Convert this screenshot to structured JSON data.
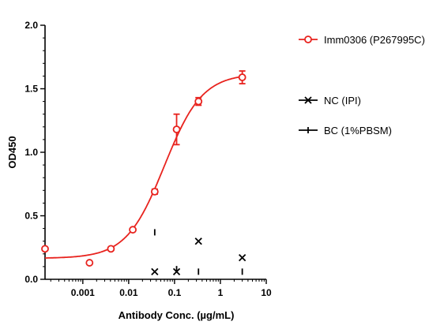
{
  "chart_data": {
    "type": "scatter",
    "title": "",
    "xlabel": "Antibody Conc. (µg/mL)",
    "ylabel": "OD450",
    "x_scale": "log",
    "xlim": [
      0.00015,
      10
    ],
    "ylim": [
      0,
      2.0
    ],
    "x_ticks": [
      0.001,
      0.01,
      0.1,
      1,
      10
    ],
    "x_tick_labels": [
      "0.001",
      "0.01",
      "0.1",
      "1",
      "10"
    ],
    "y_ticks": [
      0,
      0.5,
      1.0,
      1.5,
      2.0
    ],
    "y_tick_labels": [
      "0.0",
      "0.5",
      "1.0",
      "1.5",
      "2.0"
    ],
    "grid": false,
    "legend_position": "right",
    "series": [
      {
        "name": "Imm0306 (P267995C)",
        "marker": "circle",
        "color": "#e8231e",
        "fit": "sigmoidal dose-response",
        "x": [
          0.00015,
          0.0014,
          0.0041,
          0.0123,
          0.037,
          0.111,
          0.333,
          3.0
        ],
        "y": [
          0.24,
          0.13,
          0.24,
          0.39,
          0.69,
          1.18,
          1.4,
          1.59
        ],
        "err": [
          0,
          0,
          0,
          0,
          0.02,
          0.12,
          0.03,
          0.05
        ]
      },
      {
        "name": "NC (IPI)",
        "marker": "x",
        "color": "#000000",
        "x": [
          0.037,
          0.111,
          0.333,
          3.0
        ],
        "y": [
          0.06,
          0.06,
          0.3,
          0.17
        ]
      },
      {
        "name": "BC (1%PBSM)",
        "marker": "plus",
        "color": "#000000",
        "x": [
          0.037,
          0.111,
          0.333,
          3.0
        ],
        "y": [
          0.37,
          0.08,
          0.06,
          0.06
        ]
      }
    ]
  }
}
